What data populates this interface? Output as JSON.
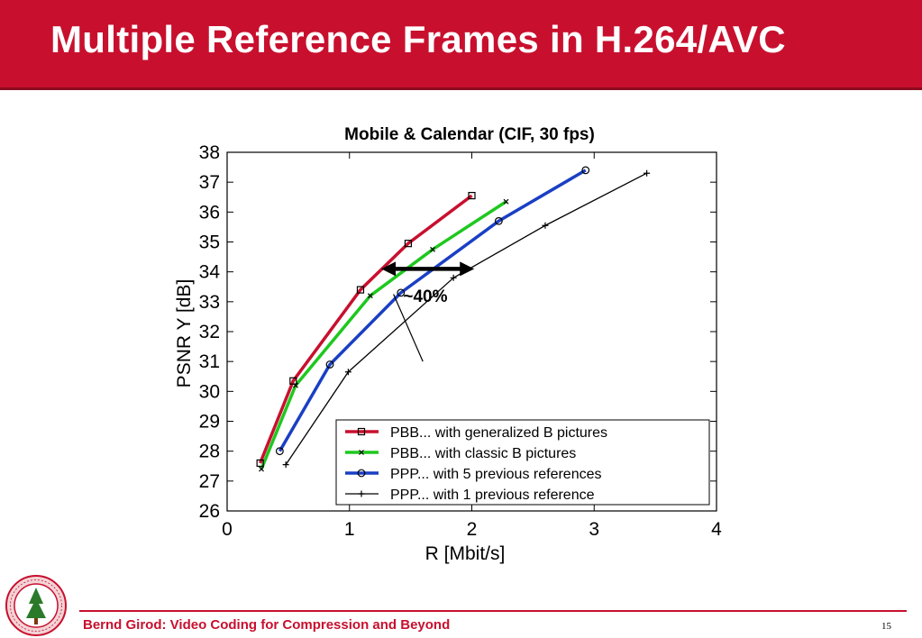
{
  "slide": {
    "title": "Multiple Reference Frames in H.264/AVC",
    "footer": "Bernd Girod: Video Coding for Compression and Beyond",
    "page_number": "15",
    "seal_text": "LELAND STANFORD JUNIOR UNIVERSITY"
  },
  "colors": {
    "brand": "#c8102e",
    "pbb_generalized": "#c8102e",
    "pbb_classic": "#1ec81e",
    "ppp_5": "#1a3fc4",
    "ppp_1": "#000000"
  },
  "chart_data": {
    "type": "line",
    "title": "Mobile & Calendar (CIF, 30 fps)",
    "xlabel": "R [Mbit/s]",
    "ylabel": "PSNR Y [dB]",
    "xlim": [
      0,
      4
    ],
    "ylim": [
      26,
      38
    ],
    "xticks": [
      "0",
      "1",
      "2",
      "3",
      "4"
    ],
    "yticks": [
      "26",
      "27",
      "28",
      "29",
      "30",
      "31",
      "32",
      "33",
      "34",
      "35",
      "36",
      "37",
      "38"
    ],
    "grid": false,
    "legend_position": "bottom-right",
    "series": [
      {
        "name": "PBB... with generalized B pictures",
        "color": "#c8102e",
        "marker": "square",
        "width": 3.5,
        "x": [
          0.27,
          0.54,
          1.09,
          1.48,
          2.0
        ],
        "y": [
          27.6,
          30.35,
          33.4,
          34.95,
          36.55
        ]
      },
      {
        "name": "PBB... with classic B pictures",
        "color": "#1ec81e",
        "marker": "x",
        "width": 3.5,
        "x": [
          0.28,
          0.56,
          1.17,
          1.68,
          2.28
        ],
        "y": [
          27.4,
          30.2,
          33.2,
          34.75,
          36.35
        ]
      },
      {
        "name": "PPP... with 5 previous references",
        "color": "#1a3fc4",
        "marker": "circle",
        "width": 3.5,
        "x": [
          0.43,
          0.84,
          1.42,
          2.22,
          2.93
        ],
        "y": [
          28.0,
          30.9,
          33.3,
          35.7,
          37.4
        ]
      },
      {
        "name": "PPP... with 1 previous reference",
        "color": "#000000",
        "marker": "plus",
        "width": 1.3,
        "x": [
          0.48,
          0.99,
          1.85,
          2.6,
          3.43
        ],
        "y": [
          27.55,
          30.65,
          33.8,
          35.55,
          37.3
        ]
      }
    ],
    "annotation": {
      "text": "~40%",
      "arrow_x": [
        1.26,
        2.02
      ],
      "arrow_y": 34.1,
      "pointer_to": [
        1.36,
        33.25
      ],
      "pointer_from": [
        1.6,
        31.0
      ]
    }
  }
}
